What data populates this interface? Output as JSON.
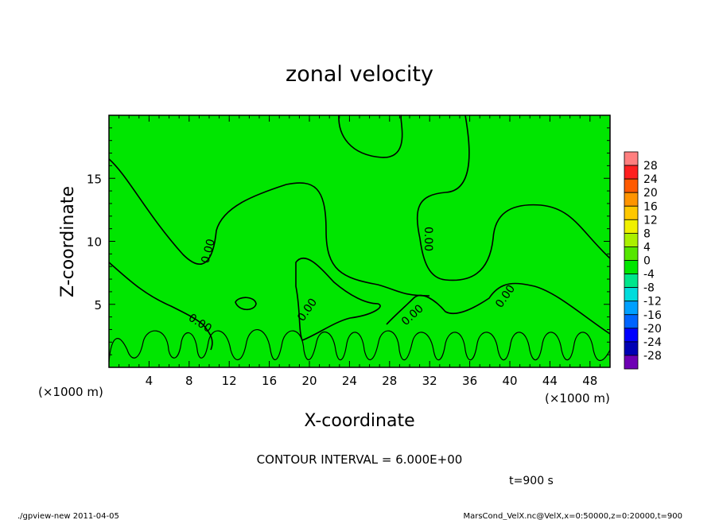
{
  "chart_data": {
    "type": "contour",
    "title": "zonal velocity",
    "xlabel": "X-coordinate",
    "ylabel": "Z-coordinate",
    "x_unit": "(×1000 m)",
    "y_unit": "(×1000 m)",
    "xlim": [
      0,
      50
    ],
    "ylim": [
      0,
      20
    ],
    "xticks": [
      4,
      8,
      12,
      16,
      20,
      24,
      28,
      32,
      36,
      40,
      44,
      48
    ],
    "yticks": [
      5,
      10,
      15
    ],
    "contour_label": "0.00",
    "contour_interval_text": "CONTOUR INTERVAL = 6.000E+00",
    "time_text": "t=900 s",
    "fill_color": "#00e600",
    "colorbar": {
      "levels": [
        28,
        24,
        20,
        16,
        12,
        8,
        4,
        0,
        -4,
        -8,
        -12,
        -16,
        -20,
        -24,
        -28
      ],
      "colors": [
        "#ff7f7f",
        "#ff2020",
        "#ff5a00",
        "#ff9400",
        "#ffc800",
        "#f0f000",
        "#aaf000",
        "#55e600",
        "#00e600",
        "#00e68c",
        "#00dcdc",
        "#00a0ff",
        "#0064ff",
        "#0000ff",
        "#0000b4",
        "#6e00b4"
      ]
    }
  },
  "footer": {
    "left": "./gpview-new   2011-04-05",
    "right": "MarsCond_VelX.nc@VelX,x=0:50000,z=0:20000,t=900"
  }
}
